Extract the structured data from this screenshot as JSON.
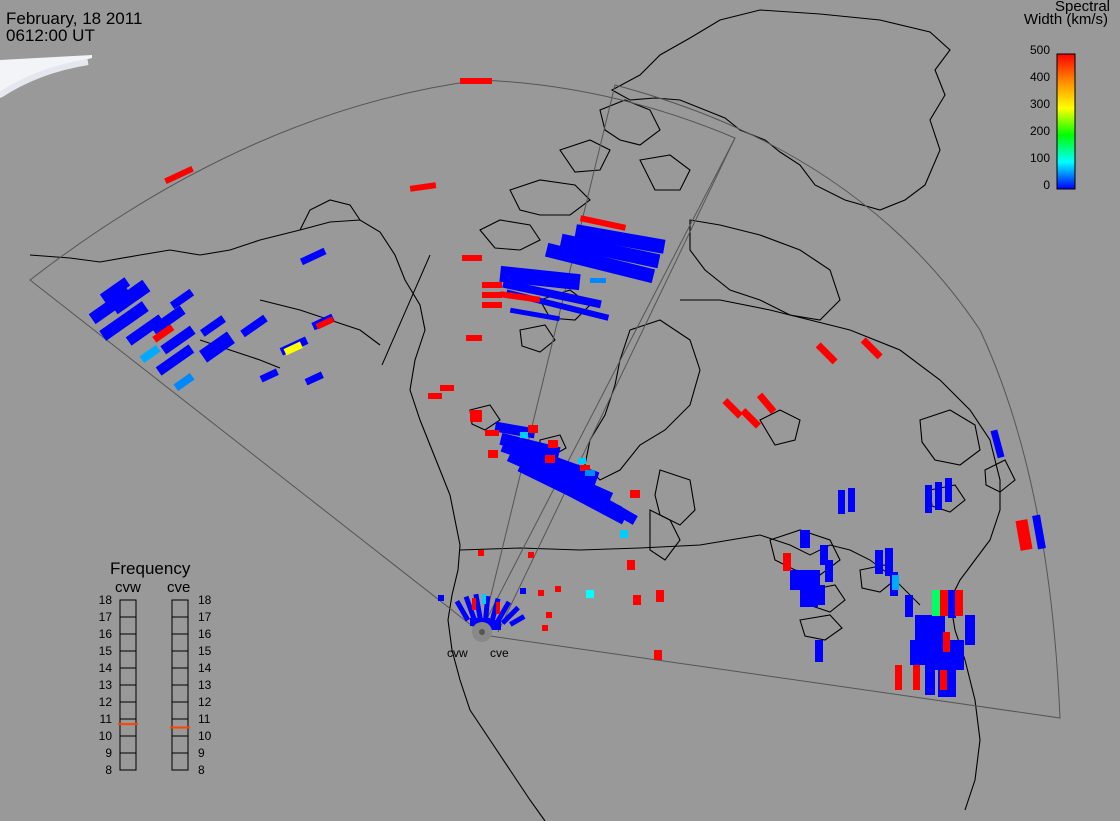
{
  "header": {
    "date": "February, 18 2011",
    "time": "0612:00 UT"
  },
  "colorbar": {
    "title_line1": "Spectral",
    "title_line2": "Width (km/s)",
    "min": 0,
    "max": 500,
    "tick_labels": [
      "500",
      "400",
      "300",
      "200",
      "100",
      "0"
    ],
    "colors": [
      "#ff0000",
      "#ff8800",
      "#ffff00",
      "#00ff00",
      "#00ffff",
      "#0000ff"
    ]
  },
  "frequency_panel": {
    "title": "Frequency",
    "radars": [
      {
        "name": "cvw",
        "frequency_mhz": 10.7
      },
      {
        "name": "cve",
        "frequency_mhz": 10.5
      }
    ],
    "ticks": [
      "18",
      "17",
      "16",
      "15",
      "14",
      "13",
      "12",
      "11",
      "10",
      "9",
      "8"
    ],
    "range": [
      8,
      18
    ]
  },
  "radar_sites": [
    {
      "name": "cvw"
    },
    {
      "name": "cve"
    }
  ],
  "colors": {
    "background": "#999999",
    "land_line": "#000000",
    "fov_line": "#444444"
  }
}
